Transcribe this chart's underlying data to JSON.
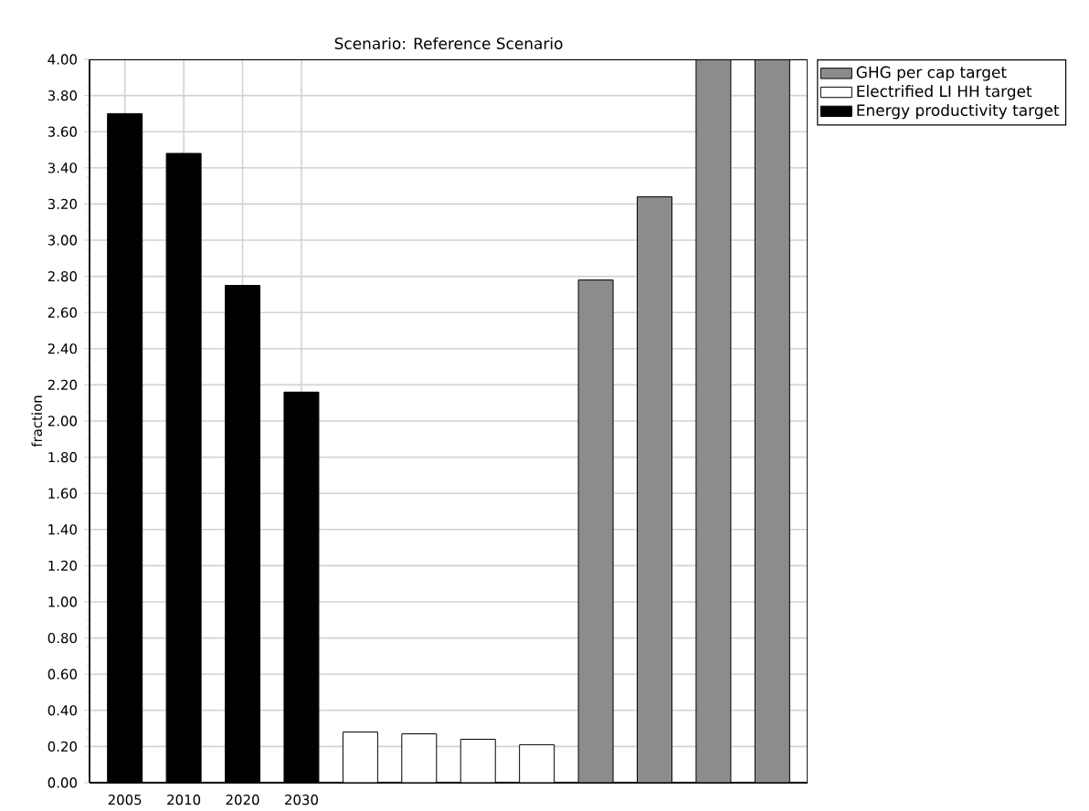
{
  "chart_data": {
    "type": "bar",
    "title": "Scenario: Reference Scenario",
    "ylabel": "fraction",
    "categories": [
      "2005",
      "2010",
      "2020",
      "2030",
      null,
      null,
      null,
      null,
      null,
      null,
      null,
      null
    ],
    "series": [
      {
        "name": "GHG per cap target",
        "color": "#8c8c8c",
        "values": [
          null,
          null,
          null,
          null,
          null,
          null,
          null,
          null,
          2.78,
          3.24,
          4.0,
          4.0
        ]
      },
      {
        "name": "Electrified LI HH  target",
        "color": "#ffffff",
        "values": [
          null,
          null,
          null,
          null,
          0.28,
          0.27,
          0.24,
          0.21,
          null,
          null,
          null,
          null
        ]
      },
      {
        "name": "Energy productivity target",
        "color": "#000000",
        "values": [
          3.7,
          3.48,
          2.75,
          2.16,
          null,
          null,
          null,
          null,
          null,
          null,
          null,
          null
        ]
      }
    ],
    "ylim": [
      0,
      4
    ],
    "yticks": [
      {
        "value": 0,
        "label": "0.00"
      },
      {
        "value": 0.2,
        "label": "0.20"
      },
      {
        "value": 0.4,
        "label": "0.40"
      },
      {
        "value": 0.6,
        "label": "0.60"
      },
      {
        "value": 0.8,
        "label": "0.80"
      },
      {
        "value": 1.0,
        "label": "1.00"
      },
      {
        "value": 1.2,
        "label": "1.20"
      },
      {
        "value": 1.4,
        "label": "1.40"
      },
      {
        "value": 1.6,
        "label": "1.60"
      },
      {
        "value": 1.8,
        "label": "1.80"
      },
      {
        "value": 2.0,
        "label": "2.00"
      },
      {
        "value": 2.2,
        "label": "2.20"
      },
      {
        "value": 2.4,
        "label": "2.40"
      },
      {
        "value": 2.6,
        "label": "2.60"
      },
      {
        "value": 2.8,
        "label": "2.80"
      },
      {
        "value": 3.0,
        "label": "3.00"
      },
      {
        "value": 3.2,
        "label": "3.20"
      },
      {
        "value": 3.4,
        "label": "3.40"
      },
      {
        "value": 3.6,
        "label": "3.60"
      },
      {
        "value": 3.8,
        "label": "3.80"
      },
      {
        "value": 4.0,
        "label": "4.00"
      }
    ],
    "grid": true,
    "legend": "top right"
  }
}
